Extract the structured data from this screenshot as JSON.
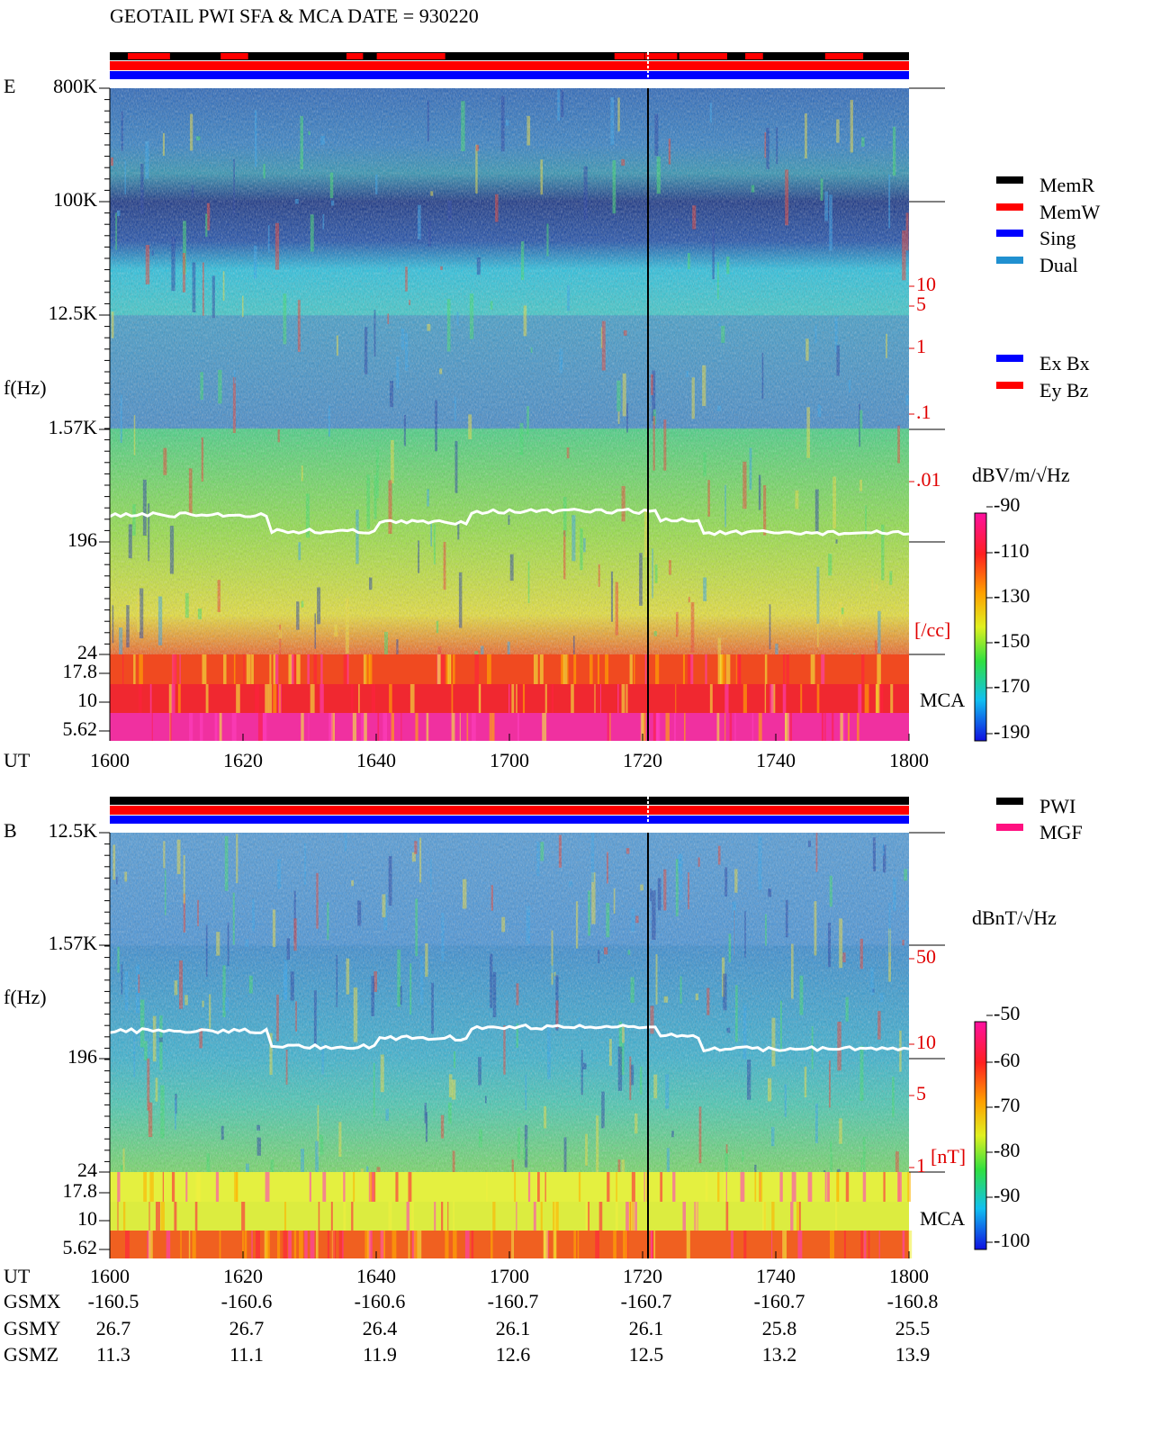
{
  "header": {
    "title": "GEOTAIL  PWI SFA & MCA   DATE = 930220"
  },
  "panels": [
    {
      "label": "E",
      "ylabel": "f(Hz)",
      "freq_ticks": [
        "800K",
        "100K",
        "12.5K",
        "1.57K",
        "196",
        "24",
        "17.8",
        "10",
        "5.62"
      ],
      "mca": "MCA",
      "time_label": "UT",
      "time_ticks": [
        "1600",
        "1620",
        "1640",
        "1700",
        "1720",
        "1740",
        "1800"
      ],
      "density_ticks": [
        "10",
        "5",
        "1",
        ".1",
        ".01"
      ],
      "density_unit": "[/cc]",
      "colorbar": {
        "title": "dBV/m/√Hz",
        "ticks": [
          "-90",
          "-110",
          "-130",
          "-150",
          "-170",
          "-190"
        ]
      },
      "legend_groups": [
        [
          {
            "name": "MemR",
            "color": "#000000"
          },
          {
            "name": "MemW",
            "color": "#ff0000"
          },
          {
            "name": "Sing",
            "color": "#0000ff"
          },
          {
            "name": "Dual",
            "color": "#2090d0"
          }
        ],
        [
          {
            "name": "Ex Bx",
            "color": "#0000ff"
          },
          {
            "name": "Ey Bz",
            "color": "#ff0000"
          }
        ]
      ]
    },
    {
      "label": "B",
      "ylabel": "f(Hz)",
      "freq_ticks": [
        "12.5K",
        "1.57K",
        "196",
        "24",
        "17.8",
        "10",
        "5.62"
      ],
      "mca": "MCA",
      "time_label": "UT",
      "time_ticks": [
        "1600",
        "1620",
        "1640",
        "1700",
        "1720",
        "1740",
        "1800"
      ],
      "density_ticks": [
        "50",
        "10",
        "5",
        "1"
      ],
      "density_unit": "[nT]",
      "colorbar": {
        "title": "dBnT/√Hz",
        "ticks": [
          "-50",
          "-60",
          "-70",
          "-80",
          "-90",
          "-100"
        ]
      },
      "legend_groups": [
        [
          {
            "name": "PWI",
            "color": "#000000"
          },
          {
            "name": "MGF",
            "color": "#ff1080"
          }
        ]
      ]
    }
  ],
  "orbit": [
    {
      "label": "GSMX",
      "values": [
        "-160.5",
        "-160.6",
        "-160.6",
        "-160.7",
        "-160.7",
        "-160.7",
        "-160.8"
      ]
    },
    {
      "label": "GSMY",
      "values": [
        "26.7",
        "26.7",
        "26.4",
        "26.1",
        "26.1",
        "25.8",
        "25.5"
      ]
    },
    {
      "label": "GSMZ",
      "values": [
        "11.3",
        "11.1",
        "11.9",
        "12.6",
        "12.5",
        "13.2",
        "13.9"
      ]
    }
  ]
}
